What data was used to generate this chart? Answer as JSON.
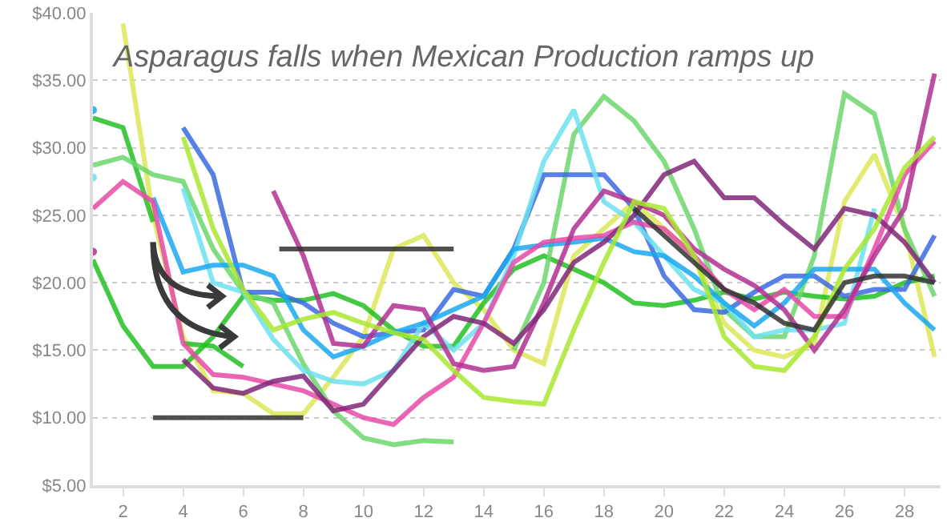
{
  "chart_data": {
    "type": "line",
    "title": "Asparagus falls when Mexican Production ramps up",
    "xlim": [
      1,
      29.2
    ],
    "xticks": [
      2,
      4,
      6,
      8,
      10,
      12,
      14,
      16,
      18,
      20,
      22,
      24,
      26,
      28
    ],
    "ylim": [
      5,
      40
    ],
    "yticks": [
      {
        "value": 5,
        "label": "$5.00"
      },
      {
        "value": 10,
        "label": "$10.00"
      },
      {
        "value": 15,
        "label": "$15.00"
      },
      {
        "value": 20,
        "label": "$20.00"
      },
      {
        "value": 25,
        "label": "$25.00"
      },
      {
        "value": 30,
        "label": "$30.00"
      },
      {
        "value": 35,
        "label": "$35.00"
      },
      {
        "value": 40,
        "label": "$40.00"
      }
    ],
    "grid": "y",
    "marker": "none",
    "line_style": "solid",
    "series": [
      {
        "color": "#dde858",
        "x": [
          2,
          3,
          4,
          5,
          6,
          7,
          8,
          9,
          10,
          11,
          12,
          13,
          14,
          15,
          16,
          17,
          18,
          19,
          20,
          21,
          22,
          23,
          24,
          25,
          26,
          27,
          28,
          29
        ],
        "values": [
          39.2,
          25,
          16,
          12,
          11.8,
          10.3,
          10.3,
          13,
          16,
          22.5,
          23.5,
          20,
          18,
          15,
          14,
          22,
          24,
          26,
          24,
          22,
          17,
          15,
          14.5,
          15.5,
          26,
          29.5,
          24,
          14.5
        ]
      },
      {
        "color": "#22c022",
        "x": [
          1,
          2,
          3
        ],
        "values": [
          32.2,
          31.5,
          24.5
        ]
      },
      {
        "color": "#22c022",
        "x": [
          1,
          2,
          3,
          4,
          5,
          6,
          7,
          8,
          9,
          10,
          11,
          12,
          13,
          14,
          15,
          16,
          17,
          18,
          19,
          20,
          21,
          22,
          23,
          24,
          25,
          26,
          27,
          28,
          29
        ],
        "values": [
          21.7,
          16.8,
          13.8,
          13.8,
          16,
          19,
          18.7,
          18.7,
          19.2,
          18.3,
          16.5,
          15.3,
          15.3,
          18.5,
          21,
          22,
          21,
          20,
          18.5,
          18.3,
          18.7,
          19.3,
          18.8,
          19.3,
          19,
          18.8,
          19,
          20,
          20.5
        ]
      },
      {
        "color": "#22c022",
        "x": [
          4,
          5,
          6
        ],
        "values": [
          15.5,
          15.3,
          13.8
        ]
      },
      {
        "color": "#6cd66c",
        "x": [
          1,
          2,
          3,
          4,
          5,
          6,
          7,
          8,
          9,
          10,
          11,
          12,
          13
        ],
        "values": [
          28.7,
          29.3,
          28,
          27.5,
          22.5,
          19.3,
          18.5,
          14,
          10.5,
          8.5,
          8,
          8.3,
          8.2
        ]
      },
      {
        "color": "#6cd66c",
        "x": [
          15,
          16,
          17,
          18,
          19,
          20,
          21,
          22,
          23,
          24,
          25,
          26,
          27,
          28,
          29
        ],
        "values": [
          15,
          20,
          31,
          33.8,
          32,
          29,
          24,
          18,
          16,
          16,
          22,
          34,
          32.5,
          24,
          19
        ]
      },
      {
        "color": "#3a6be0",
        "x": [
          4,
          5,
          6,
          7,
          8,
          9,
          10,
          11,
          12,
          13,
          14,
          15,
          16,
          17,
          18,
          19,
          20,
          21,
          22,
          23,
          24,
          25,
          26,
          27,
          28,
          29
        ],
        "values": [
          31.5,
          28,
          19.3,
          19.3,
          18.5,
          17,
          16,
          16.3,
          16.5,
          19.5,
          19,
          22.5,
          28,
          28,
          28,
          25.5,
          20.5,
          18,
          17.8,
          19.3,
          20.5,
          20.5,
          19,
          19.5,
          19.5,
          23.5
        ]
      },
      {
        "color": "#6ee0f0",
        "x": [
          1
        ],
        "values": [
          27.8
        ],
        "marker": "circle"
      },
      {
        "color": "#6ee0f0",
        "x": [
          4,
          5,
          6,
          7,
          8,
          9,
          10,
          11,
          12,
          13,
          14,
          15,
          16,
          17,
          18,
          19,
          20,
          21,
          22,
          23,
          24,
          25,
          26,
          27
        ],
        "values": [
          27,
          20,
          19.3,
          15.8,
          13.5,
          12.7,
          12.5,
          13.5,
          17,
          15,
          17,
          22,
          29,
          32.8,
          26,
          24.5,
          22,
          19.5,
          18.5,
          16,
          16.5,
          16.5,
          17,
          25.5
        ]
      },
      {
        "color": "#1aa8f0",
        "x": [
          1
        ],
        "values": [
          32.8
        ],
        "marker": "circle"
      },
      {
        "color": "#1aa8f0",
        "x": [
          3,
          4,
          5,
          6,
          7,
          8,
          9,
          10,
          11,
          12,
          13,
          14,
          15,
          16,
          17,
          18,
          19,
          20,
          21,
          22,
          23,
          24,
          25,
          26,
          27,
          28,
          29
        ],
        "values": [
          26.3,
          20.8,
          21.3,
          21.3,
          20.5,
          16.5,
          14.5,
          15.3,
          16.3,
          17,
          18,
          19,
          22.5,
          22.8,
          23,
          23.3,
          22.3,
          22,
          20.5,
          18.5,
          16.8,
          18.5,
          21,
          21,
          21,
          18.5,
          16.5
        ]
      },
      {
        "color": "#e84aa8",
        "x": [
          1,
          2,
          3,
          4,
          5,
          6,
          7,
          8,
          9,
          10,
          11,
          12,
          13,
          14,
          15,
          16,
          17,
          18,
          19,
          20,
          21,
          22,
          23,
          24,
          25,
          26,
          27,
          28,
          29
        ],
        "values": [
          25.5,
          27.5,
          26,
          15.5,
          13.2,
          13,
          12.5,
          12,
          11,
          10,
          9.5,
          11.5,
          13,
          17,
          21.5,
          23,
          23.3,
          23.5,
          24.5,
          24,
          22,
          19.5,
          18,
          19.5,
          17.5,
          17.5,
          22.5,
          28,
          30.5
        ]
      },
      {
        "color": "#b03090",
        "x": [
          1
        ],
        "values": [
          22.3
        ],
        "marker": "circle"
      },
      {
        "color": "#b03090",
        "x": [
          7,
          8,
          9,
          10,
          11,
          12,
          13,
          14,
          15,
          16,
          17,
          18,
          19,
          20,
          21,
          22,
          23,
          24,
          25,
          26,
          27,
          28,
          29
        ],
        "values": [
          26.8,
          22,
          15.5,
          15.3,
          18.3,
          18,
          14,
          13.5,
          13.8,
          18.5,
          24,
          26.8,
          26,
          25,
          22.5,
          21,
          19.8,
          18,
          15,
          18,
          22,
          25.5,
          35.5
        ]
      },
      {
        "color": "#80287a",
        "x": [
          4,
          5,
          6,
          7,
          8,
          9,
          10,
          11,
          12,
          13,
          14,
          15,
          16,
          17,
          18,
          19,
          20,
          21,
          22,
          23,
          24,
          25,
          26,
          27,
          28,
          29
        ],
        "values": [
          14.3,
          12.2,
          11.8,
          12.7,
          13.1,
          10.5,
          11,
          13.5,
          16,
          17.5,
          17,
          15.5,
          18,
          21.5,
          23,
          25,
          28,
          29,
          26.3,
          26.3,
          24.3,
          22.5,
          25.5,
          25,
          23,
          20
        ]
      },
      {
        "color": "#a8e830",
        "x": [
          4,
          5,
          6,
          7,
          8,
          9,
          10,
          11,
          12,
          13,
          14,
          15,
          16,
          17,
          18,
          19,
          20,
          21,
          22,
          23,
          24,
          25,
          26,
          27,
          28,
          29
        ],
        "values": [
          30.8,
          24,
          19.5,
          16.5,
          17.3,
          17.8,
          17,
          16.3,
          15.8,
          13.5,
          11.5,
          11.2,
          11,
          16.5,
          21.5,
          26,
          25.5,
          22,
          16,
          13.8,
          13.5,
          16,
          21,
          24,
          28.5,
          30.8
        ]
      },
      {
        "color": "#333333",
        "x": [
          19,
          20,
          21,
          22,
          23,
          24,
          25,
          26,
          27,
          28,
          29
        ],
        "values": [
          25.5,
          23.5,
          21.5,
          19.5,
          18.5,
          17,
          16.5,
          20,
          20.5,
          20.5,
          20
        ]
      },
      {
        "color": "#333333",
        "x": [
          3,
          8
        ],
        "values": [
          10,
          10
        ]
      },
      {
        "color": "#333333",
        "x": [
          7.2,
          13
        ],
        "values": [
          22.5,
          22.5
        ]
      }
    ]
  }
}
